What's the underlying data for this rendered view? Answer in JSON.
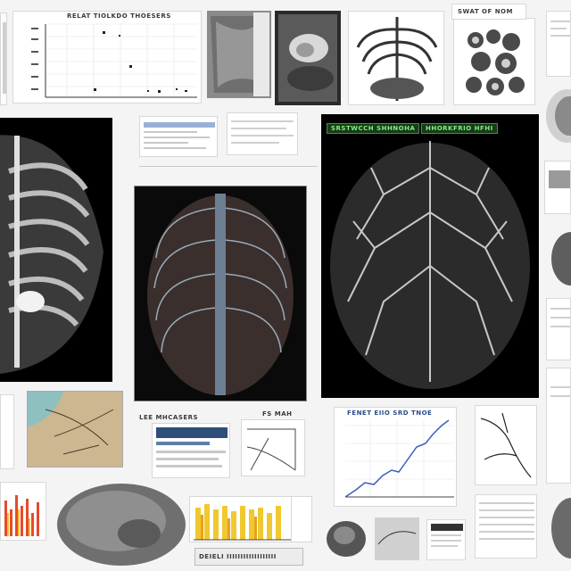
{
  "panels": {
    "top_chart_caption": "RELAT TIOLKDO THOESERS",
    "top_right_doc_caption": "SWAT OF NOM",
    "center_caption_left": "SRSTWCCH SHHNOHA",
    "center_caption_right": "HHORKFRIO  HFHI",
    "mid_left_doc_caption": "LEE MHCASERS",
    "small_doc_caption": "FS MAH",
    "mid_chart_caption": "FENET EIIO SRD TNOE",
    "bottom_label": "DEIELI IIIIIIIIIIIIIIIIII"
  },
  "colors": {
    "accent_blue": "#3a5fb8",
    "chart_orange": "#e8a020",
    "chart_red": "#e84a2a",
    "chart_yellow": "#f0c830"
  }
}
